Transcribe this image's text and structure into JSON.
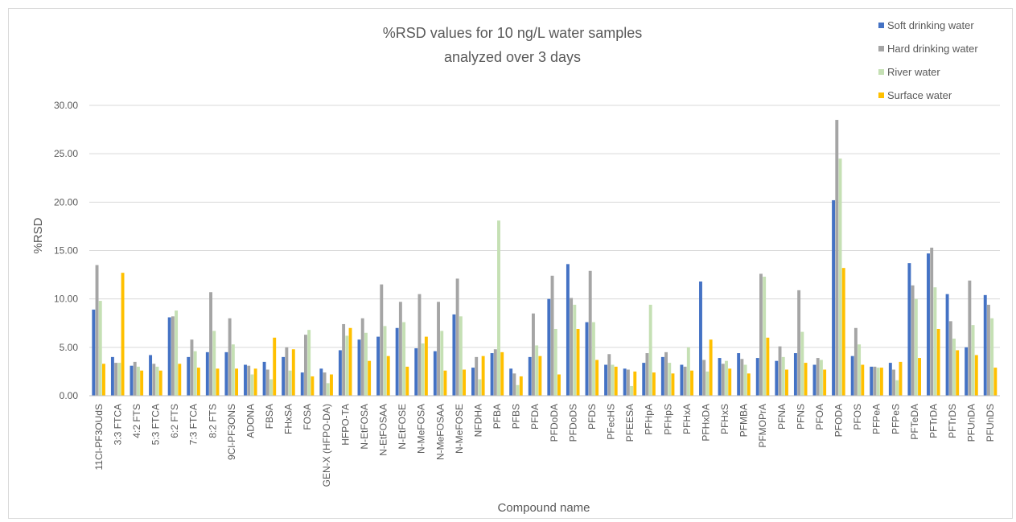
{
  "chart_data": {
    "type": "bar",
    "title": [
      "%RSD values for 10 ng/L water samples",
      "analyzed over 3 days"
    ],
    "xlabel": "Compound name",
    "ylabel": "%RSD",
    "ylim": [
      0,
      30
    ],
    "yticks": [
      "0.00",
      "5.00",
      "10.00",
      "15.00",
      "20.00",
      "25.00",
      "30.00"
    ],
    "grid": true,
    "legend_position": "top-right",
    "categories": [
      "11Cl-PF3OUdS",
      "3:3 FTCA",
      "4:2 FTS",
      "5:3 FTCA",
      "6:2 FTS",
      "7:3 FTCA",
      "8:2 FTS",
      "9Cl-PF3ONS",
      "ADONA",
      "FBSA",
      "FHxSA",
      "FOSA",
      "GEN-X (HFPO-DA)",
      "HFPO-TA",
      "N-EtFOSA",
      "N-EtFOSAA",
      "N-EtFOSE",
      "N-MeFOSA",
      "N-MeFOSAA",
      "N-MeFOSE",
      "NFDHA",
      "PFBA",
      "PFBS",
      "PFDA",
      "PFDoDA",
      "PFDoDS",
      "PFDS",
      "PFecHS",
      "PFEESA",
      "PFHpA",
      "PFHpS",
      "PFHxA",
      "PFHxDA",
      "PFHxS",
      "PFMBA",
      "PFMOPrA",
      "PFNA",
      "PFNS",
      "PFOA",
      "PFODA",
      "PFOS",
      "PFPeA",
      "PFPeS",
      "PFTeDA",
      "PFTrDA",
      "PFTrDS",
      "PFUnDA",
      "PFUnDS"
    ],
    "series": [
      {
        "name": "Soft drinking water",
        "color": "#4472c4",
        "values": [
          8.9,
          4.0,
          3.1,
          4.2,
          8.1,
          4.0,
          4.5,
          4.5,
          3.2,
          3.5,
          4.0,
          2.4,
          2.8,
          4.7,
          5.8,
          6.1,
          7.0,
          4.9,
          4.6,
          8.4,
          2.9,
          4.4,
          2.8,
          4.0,
          10.0,
          13.6,
          7.6,
          3.2,
          2.8,
          3.4,
          4.0,
          3.2,
          11.8,
          3.9,
          4.4,
          3.9,
          3.6,
          4.4,
          3.2,
          20.2,
          4.1,
          3.0,
          3.4,
          13.7,
          14.7,
          10.5,
          5.0,
          10.4
        ]
      },
      {
        "name": "Hard drinking water",
        "color": "#a5a5a5",
        "values": [
          13.5,
          3.4,
          3.5,
          3.3,
          8.2,
          5.8,
          10.7,
          8.0,
          3.1,
          2.7,
          5.0,
          6.3,
          2.4,
          7.4,
          8.0,
          11.5,
          9.7,
          10.5,
          9.7,
          12.1,
          4.0,
          4.8,
          2.3,
          8.5,
          12.4,
          10.1,
          12.9,
          4.3,
          2.7,
          4.4,
          4.5,
          3.0,
          3.7,
          3.3,
          3.8,
          12.6,
          5.1,
          10.9,
          3.9,
          28.5,
          7.0,
          3.0,
          2.7,
          11.4,
          15.3,
          7.7,
          11.9,
          9.4
        ]
      },
      {
        "name": "River water",
        "color": "#c5e0b4",
        "values": [
          9.8,
          3.4,
          3.0,
          3.0,
          8.8,
          4.6,
          6.7,
          5.3,
          2.2,
          1.7,
          2.6,
          6.8,
          1.3,
          6.2,
          6.5,
          7.2,
          7.6,
          5.4,
          6.7,
          8.2,
          1.7,
          18.1,
          1.1,
          5.2,
          6.9,
          9.4,
          7.6,
          3.2,
          1.0,
          9.4,
          3.4,
          5.0,
          2.5,
          3.6,
          3.2,
          12.3,
          4.0,
          6.6,
          3.7,
          24.5,
          5.3,
          2.9,
          1.6,
          10.0,
          11.2,
          5.9,
          7.3,
          8.0
        ]
      },
      {
        "name": "Surface water",
        "color": "#ffc000",
        "values": [
          3.3,
          12.7,
          2.6,
          2.6,
          3.3,
          2.9,
          2.8,
          2.8,
          2.8,
          6.0,
          4.8,
          2.0,
          2.2,
          7.0,
          3.6,
          4.1,
          3.0,
          6.1,
          2.6,
          2.7,
          4.1,
          4.5,
          2.0,
          4.1,
          2.2,
          6.9,
          3.7,
          3.0,
          2.5,
          2.4,
          2.3,
          2.6,
          5.8,
          2.8,
          2.3,
          6.0,
          2.7,
          3.4,
          2.7,
          13.2,
          3.2,
          2.9,
          3.5,
          3.9,
          6.9,
          4.7,
          4.2,
          2.9
        ]
      }
    ]
  }
}
